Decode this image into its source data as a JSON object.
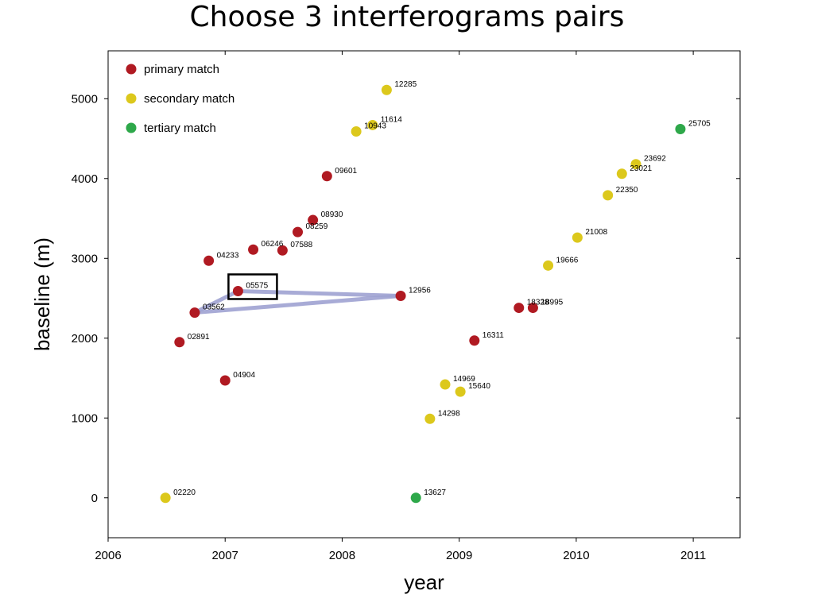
{
  "slide": {
    "title": "Choose 3 interferograms pairs"
  },
  "colors": {
    "primary": "#b01a22",
    "secondary": "#dcc81c",
    "tertiary": "#2ea84a",
    "pair_lines": "#9fa3d2",
    "axis": "#000000"
  },
  "chart_data": {
    "type": "scatter",
    "xlabel": "year",
    "ylabel": "baseline (m)",
    "xlim": [
      2006,
      2011.4
    ],
    "ylim": [
      -500,
      5600
    ],
    "xticks": [
      2006,
      2007,
      2008,
      2009,
      2010,
      2011
    ],
    "yticks": [
      0,
      1000,
      2000,
      3000,
      4000,
      5000
    ],
    "grid": false,
    "legend_position": "top-left",
    "series": [
      {
        "name": "primary match",
        "color": "#b01a22",
        "points": [
          {
            "x": 2006.61,
            "y": 1950,
            "label": "02891"
          },
          {
            "x": 2006.74,
            "y": 2320,
            "label": "03562"
          },
          {
            "x": 2006.86,
            "y": 2970,
            "label": "04233"
          },
          {
            "x": 2007.0,
            "y": 1470,
            "label": "04904"
          },
          {
            "x": 2007.11,
            "y": 2590,
            "label": "05575"
          },
          {
            "x": 2007.24,
            "y": 3110,
            "label": "06246"
          },
          {
            "x": 2007.49,
            "y": 3100,
            "label": "07588"
          },
          {
            "x": 2007.62,
            "y": 3330,
            "label": "08259"
          },
          {
            "x": 2007.75,
            "y": 3480,
            "label": "08930"
          },
          {
            "x": 2007.87,
            "y": 4030,
            "label": "09601"
          },
          {
            "x": 2008.5,
            "y": 2530,
            "label": "12956"
          },
          {
            "x": 2009.13,
            "y": 1970,
            "label": "16311"
          },
          {
            "x": 2009.51,
            "y": 2380,
            "label": "18328"
          },
          {
            "x": 2009.63,
            "y": 2380,
            "label": "18995"
          }
        ]
      },
      {
        "name": "secondary match",
        "color": "#dcc81c",
        "points": [
          {
            "x": 2006.49,
            "y": 0,
            "label": "02220"
          },
          {
            "x": 2008.12,
            "y": 4590,
            "label": "10943"
          },
          {
            "x": 2008.26,
            "y": 4670,
            "label": "11614"
          },
          {
            "x": 2008.38,
            "y": 5110,
            "label": "12285"
          },
          {
            "x": 2008.75,
            "y": 990,
            "label": "14298"
          },
          {
            "x": 2008.88,
            "y": 1420,
            "label": "14969"
          },
          {
            "x": 2009.01,
            "y": 1330,
            "label": "15640"
          },
          {
            "x": 2009.76,
            "y": 2910,
            "label": "19666"
          },
          {
            "x": 2010.01,
            "y": 3260,
            "label": "21008"
          },
          {
            "x": 2010.27,
            "y": 3790,
            "label": "22350"
          },
          {
            "x": 2010.39,
            "y": 4060,
            "label": "23021"
          },
          {
            "x": 2010.51,
            "y": 4180,
            "label": "23692"
          }
        ]
      },
      {
        "name": "tertiary match",
        "color": "#2ea84a",
        "points": [
          {
            "x": 2008.63,
            "y": 0,
            "label": "13627"
          },
          {
            "x": 2010.89,
            "y": 4620,
            "label": "25705"
          }
        ]
      }
    ],
    "pairs": [
      [
        "03562",
        "05575"
      ],
      [
        "05575",
        "12956"
      ],
      [
        "03562",
        "12956"
      ]
    ],
    "highlight": "05575"
  }
}
